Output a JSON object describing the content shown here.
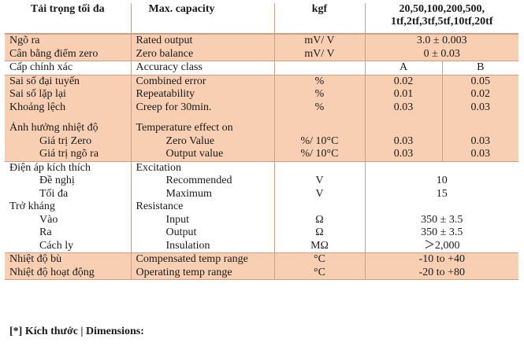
{
  "header": {
    "col0": "Tải trọng tối đa",
    "col1": "Max. capacity",
    "col2": "kgf",
    "col3_line1": "20,50,100,200,500,",
    "col3_line2": "1tf,2tf,3tf,5tf,10tf,20tf"
  },
  "rows": {
    "output": {
      "vi": "Ngõ ra",
      "en": "Rated output",
      "unit": "mV/ V",
      "value": "3.0 ± 0.003"
    },
    "zero_balance": {
      "vi": "Cân bằng điểm zero",
      "en": "Zero balance",
      "unit": "mV/ V",
      "value": "0 ± 0.03"
    },
    "accuracy": {
      "vi": "Cấp chính xác",
      "en": "Accuracy class",
      "a": "A",
      "b": "B"
    },
    "combined": {
      "vi": "Sai số đại tuyến",
      "en": "Combined error",
      "unit": "%",
      "a": "0.02",
      "b": "0.05"
    },
    "repeat": {
      "vi": "Sai số lặp lại",
      "en": "Repeatability",
      "unit": "%",
      "a": "0.01",
      "b": "0.02"
    },
    "creep": {
      "vi": "Khoảng lệch",
      "en": "Creep for 30min.",
      "unit": "%",
      "a": "0.03",
      "b": "0.03"
    },
    "temp": {
      "vi": "Ảnh hưởng nhiệt độ",
      "en": "Temperature effect on"
    },
    "temp_zero": {
      "vi": "Giá trị Zero",
      "en": "Zero Value",
      "unit": "%/ 10°C",
      "a": "0.03",
      "b": "0.03"
    },
    "temp_out": {
      "vi": "Giá trị ngõ ra",
      "en": "Output value",
      "unit": "%/ 10°C",
      "a": "0.03",
      "b": "0.03"
    },
    "excitation": {
      "vi": "Điện áp kích thích",
      "en": "Excitation"
    },
    "exc_rec": {
      "vi": "Đề nghị",
      "en": "Recommended",
      "unit": "V",
      "value": "10"
    },
    "exc_max": {
      "vi": "Tối đa",
      "en": "Maximum",
      "unit": "V",
      "value": "15"
    },
    "resistance": {
      "vi": "Trở kháng",
      "en": "Resistance"
    },
    "res_in": {
      "vi": "Vào",
      "en": "Input",
      "unit": "Ω",
      "value": "350 ± 3.5"
    },
    "res_out": {
      "vi": "Ra",
      "en": "Output",
      "unit": "Ω",
      "value": "350 ± 3.5"
    },
    "res_ins": {
      "vi": "Cách ly",
      "en": "Insulation",
      "unit": "MΩ",
      "value": "＞2,000"
    },
    "comp_temp": {
      "vi": "Nhiệt độ bù",
      "en": "Compensated temp range",
      "unit": "°C",
      "value": "-10 to +40"
    },
    "op_temp": {
      "vi": "Nhiệt độ hoạt động",
      "en": "Operating temp range",
      "unit": "°C",
      "value": "-20 to +80"
    }
  },
  "footer": "[*] Kích thước | Dimensions:"
}
